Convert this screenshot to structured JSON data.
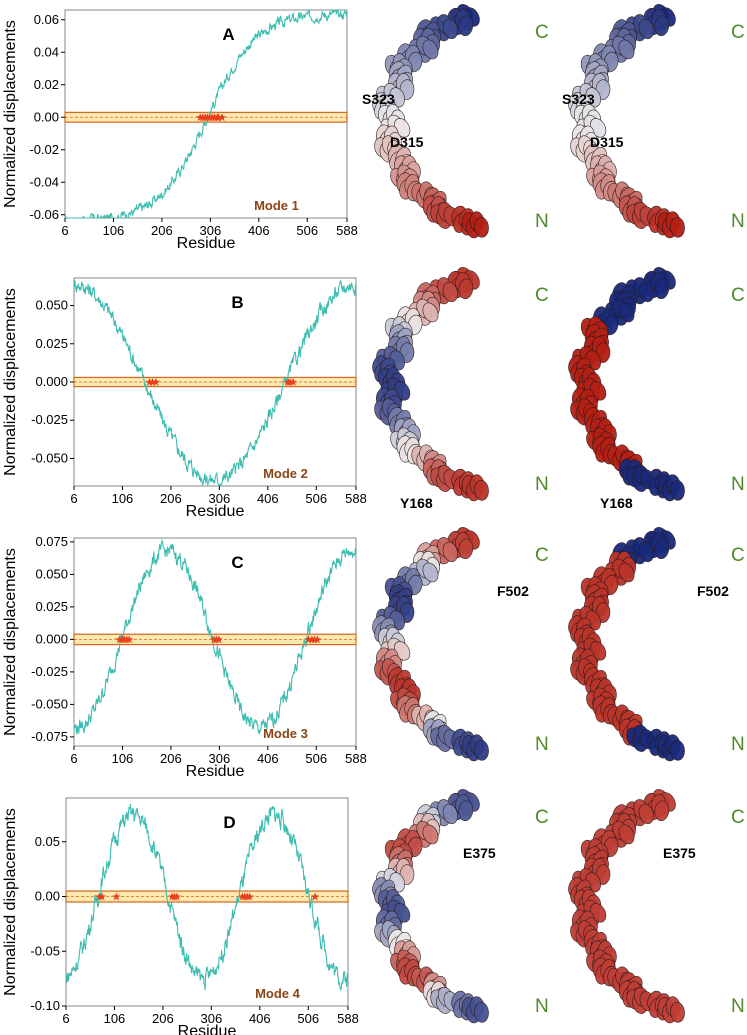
{
  "figure": {
    "colors": {
      "trace": "#3dbdb0",
      "band_fill": "#fde9b0",
      "band_edge": "#d2691e",
      "marker": "#e8401c",
      "mode_label": "#8b4513",
      "terminal_label": "#4f8a2a",
      "blue": "#1a2a7a",
      "red": "#b51f14",
      "white": "#eeeeee"
    }
  },
  "chart_data": [
    {
      "type": "line",
      "panel": "A",
      "mode_label": "Mode 1",
      "xlabel": "Residue",
      "ylabel": "Normalized displacements",
      "xlim": [
        6,
        588
      ],
      "ylim": [
        -0.062,
        0.066
      ],
      "x_ticks": [
        6,
        106,
        206,
        306,
        406,
        506,
        588
      ],
      "y_ticks": [
        -0.06,
        -0.04,
        -0.02,
        0.0,
        0.02,
        0.04,
        0.06
      ],
      "y_tick_labels": [
        "-0.06",
        "-0.04",
        "-0.02",
        "0.00",
        "0.02",
        "0.04",
        "0.06"
      ],
      "shape": {
        "kind": "sigmoid",
        "amp": 0.064,
        "center": 300,
        "width": 100,
        "noise": 0.0025
      },
      "band": [
        -0.003,
        0.003
      ],
      "markers_x": [
        285,
        290,
        295,
        300,
        305,
        310,
        315,
        320,
        323,
        330
      ],
      "structure_labels": [
        "S323",
        "D315"
      ]
    },
    {
      "type": "line",
      "panel": "B",
      "mode_label": "Mode 2",
      "xlabel": "Residue",
      "ylabel": "Normalized displacements",
      "xlim": [
        6,
        588
      ],
      "ylim": [
        -0.068,
        0.068
      ],
      "x_ticks": [
        6,
        106,
        206,
        306,
        406,
        506,
        588
      ],
      "y_ticks": [
        -0.05,
        -0.025,
        0.0,
        0.025,
        0.05
      ],
      "y_tick_labels": [
        "-0.050",
        "-0.025",
        "0.000",
        "0.025",
        "0.050"
      ],
      "shape": {
        "kind": "cos",
        "amp": 0.064,
        "period": 580,
        "phase": 6,
        "noise": 0.004
      },
      "band": [
        -0.003,
        0.003
      ],
      "markers_x": [
        162,
        168,
        175,
        448,
        452,
        458
      ],
      "structure_labels": [
        "Y168",
        "Y168"
      ]
    },
    {
      "type": "line",
      "panel": "C",
      "mode_label": "Mode 3",
      "xlabel": "Residue",
      "ylabel": "Normalized displacements",
      "xlim": [
        6,
        588
      ],
      "ylim": [
        -0.082,
        0.078
      ],
      "x_ticks": [
        6,
        106,
        206,
        306,
        406,
        506,
        588
      ],
      "y_ticks": [
        -0.075,
        -0.05,
        -0.025,
        0.0,
        0.025,
        0.05,
        0.075
      ],
      "y_tick_labels": [
        "-0.075",
        "-0.050",
        "-0.025",
        "0.000",
        "0.025",
        "0.050",
        "0.075"
      ],
      "shape": {
        "kind": "sin3",
        "amp": 0.068,
        "noise": 0.005
      },
      "band": [
        -0.004,
        0.004
      ],
      "markers_x": [
        100,
        105,
        110,
        115,
        120,
        295,
        300,
        305,
        490,
        497,
        502,
        508
      ],
      "structure_labels": [
        "F502",
        "F502"
      ]
    },
    {
      "type": "line",
      "panel": "D",
      "mode_label": "Mode 4",
      "xlabel": "Residue",
      "ylabel": "Normalized displacements",
      "xlim": [
        6,
        588
      ],
      "ylim": [
        -0.1,
        0.09
      ],
      "x_ticks": [
        6,
        106,
        206,
        306,
        406,
        506,
        588
      ],
      "y_ticks": [
        -0.1,
        -0.05,
        0.0,
        0.05
      ],
      "y_tick_labels": [
        "-0.10",
        "-0.05",
        "0.00",
        "0.05"
      ],
      "shape": {
        "kind": "sin4",
        "amp": 0.075,
        "noise": 0.007
      },
      "band": [
        -0.005,
        0.005
      ],
      "markers_x": [
        75,
        80,
        110,
        225,
        230,
        235,
        370,
        375,
        380,
        385,
        520
      ],
      "structure_labels": [
        "E375",
        "E375"
      ]
    }
  ],
  "terminals": {
    "c": "C",
    "n": "N"
  }
}
